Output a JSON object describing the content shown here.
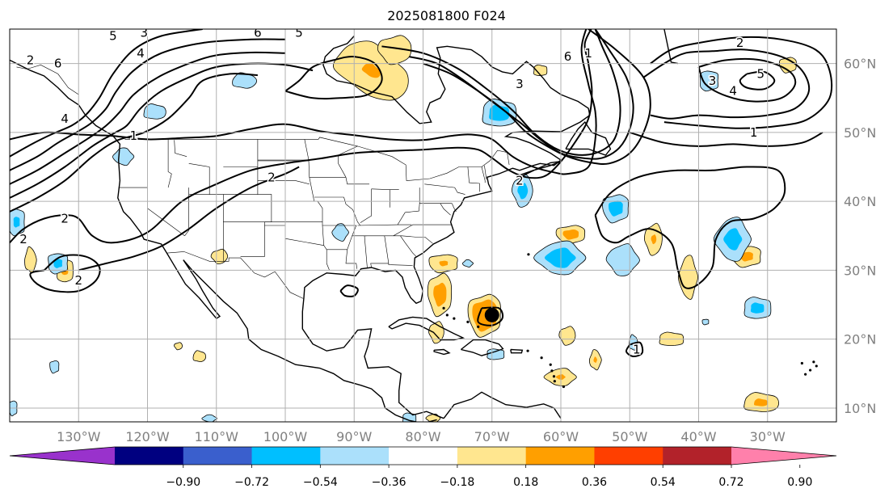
{
  "title": "2025081800 F024",
  "map": {
    "extent": {
      "lon_min": -140,
      "lon_max": -20,
      "lat_min": 8,
      "lat_max": 65
    },
    "lon_ticks": [
      {
        "value": -130,
        "label": "130°W"
      },
      {
        "value": -120,
        "label": "120°W"
      },
      {
        "value": -110,
        "label": "110°W"
      },
      {
        "value": -100,
        "label": "100°W"
      },
      {
        "value": -90,
        "label": "90°W"
      },
      {
        "value": -80,
        "label": "80°W"
      },
      {
        "value": -70,
        "label": "70°W"
      },
      {
        "value": -60,
        "label": "60°W"
      },
      {
        "value": -50,
        "label": "50°W"
      },
      {
        "value": -40,
        "label": "40°W"
      },
      {
        "value": -30,
        "label": "30°W"
      }
    ],
    "lat_ticks": [
      {
        "value": 60,
        "label": "60°N"
      },
      {
        "value": 50,
        "label": "50°N"
      },
      {
        "value": 40,
        "label": "40°N"
      },
      {
        "value": 30,
        "label": "30°N"
      },
      {
        "value": 20,
        "label": "20°N"
      },
      {
        "value": 10,
        "label": "10°N"
      }
    ],
    "grid": true,
    "contour_labels": [
      {
        "lon": -122,
        "lat": 49.5,
        "text": "1"
      },
      {
        "lon": -102,
        "lat": 43.5,
        "text": "2"
      },
      {
        "lon": -132,
        "lat": 37.5,
        "text": "2"
      },
      {
        "lon": -138,
        "lat": 34.5,
        "text": "2"
      },
      {
        "lon": -130,
        "lat": 28.5,
        "text": "2"
      },
      {
        "lon": -137,
        "lat": 60.5,
        "text": "2"
      },
      {
        "lon": -133,
        "lat": 60,
        "text": "6"
      },
      {
        "lon": -132,
        "lat": 52,
        "text": "4"
      },
      {
        "lon": -121,
        "lat": 61.5,
        "text": "4"
      },
      {
        "lon": -125,
        "lat": 64,
        "text": "5"
      },
      {
        "lon": -120.5,
        "lat": 64.5,
        "text": "3"
      },
      {
        "lon": -104,
        "lat": 64.5,
        "text": "6"
      },
      {
        "lon": -98,
        "lat": 64.5,
        "text": "5"
      },
      {
        "lon": -66,
        "lat": 57,
        "text": "3"
      },
      {
        "lon": -59,
        "lat": 61,
        "text": "6"
      },
      {
        "lon": -56,
        "lat": 61.5,
        "text": "1"
      },
      {
        "lon": -66,
        "lat": 43,
        "text": "2"
      },
      {
        "lon": -34,
        "lat": 63,
        "text": "2"
      },
      {
        "lon": -31,
        "lat": 58.5,
        "text": "5"
      },
      {
        "lon": -38,
        "lat": 57.5,
        "text": "3"
      },
      {
        "lon": -35,
        "lat": 56,
        "text": "4"
      },
      {
        "lon": -32,
        "lat": 50,
        "text": "1"
      },
      {
        "lon": -49,
        "lat": 18.5,
        "text": "1"
      }
    ],
    "hurricane_marker": {
      "lon": -70,
      "lat": 23.5
    },
    "anomaly_colors": {
      "weak_pos": "#ffe68f",
      "mod_pos": "#ff9f00",
      "weak_neg": "#abe0fb",
      "mod_neg": "#00bfff"
    }
  },
  "colorbar": {
    "levels": [
      "−0.90",
      "−0.72",
      "−0.54",
      "−0.36",
      "−0.18",
      "0.18",
      "0.36",
      "0.54",
      "0.72",
      "0.90"
    ],
    "colors": [
      "#9932cc",
      "#000080",
      "#3a5fcd",
      "#00bfff",
      "#abe0fb",
      "#ffffff",
      "#ffe68f",
      "#ff9f00",
      "#ff3f00",
      "#b2222a",
      "#ff80ab"
    ]
  }
}
